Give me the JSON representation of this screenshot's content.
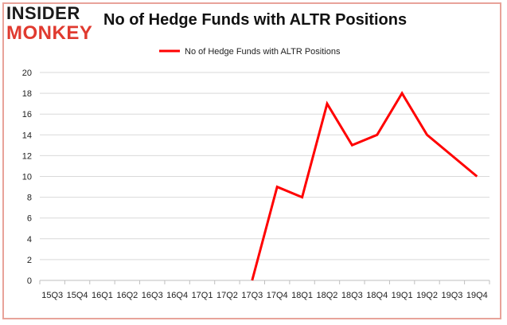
{
  "logo": {
    "top": "INSIDER",
    "bottom": "MONKEY"
  },
  "chart_data": {
    "type": "line",
    "title": "No of Hedge Funds with ALTR Positions",
    "xlabel": "",
    "ylabel": "",
    "categories": [
      "15Q3",
      "15Q4",
      "16Q1",
      "16Q2",
      "16Q3",
      "16Q4",
      "17Q1",
      "17Q2",
      "17Q3",
      "17Q4",
      "18Q1",
      "18Q2",
      "18Q3",
      "18Q4",
      "19Q1",
      "19Q2",
      "19Q3",
      "19Q4"
    ],
    "series": [
      {
        "name": "No of Hedge Funds with ALTR Positions",
        "values": [
          null,
          null,
          null,
          null,
          null,
          null,
          null,
          null,
          0,
          9,
          8,
          17,
          13,
          14,
          18,
          14,
          12,
          10
        ],
        "color": "#ff0000"
      }
    ],
    "ylim": [
      0,
      20
    ],
    "yticks": [
      0,
      2,
      4,
      6,
      8,
      10,
      12,
      14,
      16,
      18,
      20
    ],
    "grid": true,
    "legend": "top-center"
  }
}
